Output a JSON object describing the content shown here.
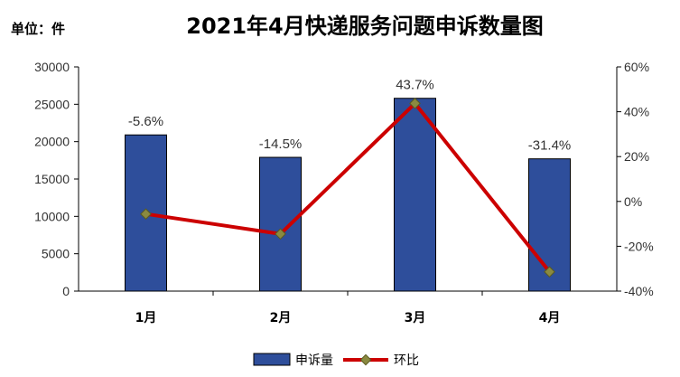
{
  "chart_data": {
    "type": "bar",
    "title": "2021年4月快递服务问题申诉数量图",
    "unit_label": "单位：件",
    "categories": [
      "1月",
      "2月",
      "3月",
      "4月"
    ],
    "series": [
      {
        "name": "申诉量",
        "kind": "bar",
        "axis": "left",
        "color": "#2e4e9b",
        "values": [
          20900,
          17900,
          25800,
          17700
        ]
      },
      {
        "name": "环比",
        "kind": "line",
        "axis": "right",
        "color": "#cc0000",
        "marker_color": "#8a8a40",
        "values": [
          -5.6,
          -14.5,
          43.7,
          -31.4
        ],
        "labels": [
          "-5.6%",
          "-14.5%",
          "43.7%",
          "-31.4%"
        ]
      }
    ],
    "y_left": {
      "min": 0,
      "max": 30000,
      "ticks": [
        0,
        5000,
        10000,
        15000,
        20000,
        25000,
        30000
      ]
    },
    "y_right": {
      "min": -40,
      "max": 60,
      "ticks": [
        -40,
        -20,
        0,
        20,
        40,
        60
      ],
      "tick_labels": [
        "-40%",
        "-20%",
        "0%",
        "20%",
        "40%",
        "60%"
      ]
    },
    "grid": false,
    "legend_position": "bottom"
  }
}
